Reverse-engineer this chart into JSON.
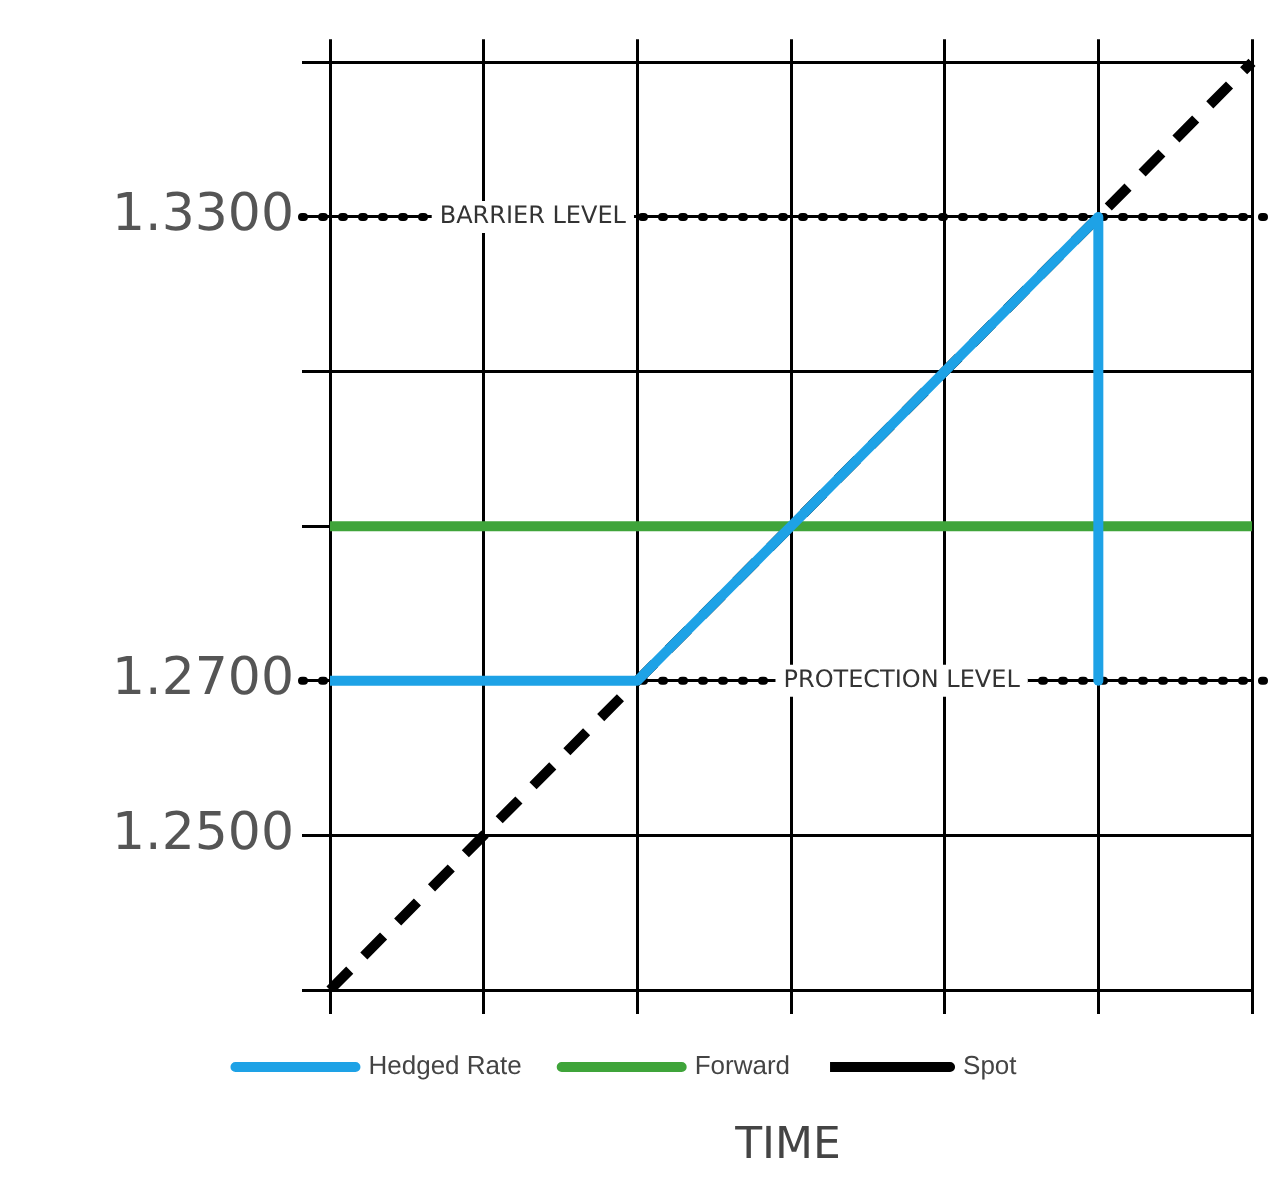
{
  "chart_data": {
    "type": "line",
    "xlabel": "TIME",
    "categories": [
      null,
      null,
      null,
      null,
      null,
      null,
      null
    ],
    "ylim": [
      1.23,
      1.353
    ],
    "yticks": [
      {
        "value": 1.23,
        "label": null
      },
      {
        "value": 1.25,
        "label": "1.2500"
      },
      {
        "value": 1.27,
        "label": "1.2700"
      },
      {
        "value": 1.29,
        "label": null
      },
      {
        "value": 1.31,
        "label": null
      },
      {
        "value": 1.33,
        "label": "1.3300"
      },
      {
        "value": 1.35,
        "label": null
      }
    ],
    "tick_labels": "y",
    "grid": true,
    "legend": "bottom",
    "marker": "none",
    "series": [
      {
        "name": "Hedged Rate",
        "color": "#1ea2e6",
        "values": [
          1.27,
          1.27,
          1.27,
          1.29,
          1.31,
          1.33,
          null
        ],
        "errors": [
          null,
          null,
          null,
          null,
          null,
          [
            1.27,
            1.33
          ],
          null
        ]
      },
      {
        "name": "Forward",
        "color": "#3fa43a",
        "values": [
          1.29,
          1.29,
          1.29,
          1.29,
          1.29,
          1.29,
          1.29
        ]
      },
      {
        "name": "Spot",
        "color": "#000000",
        "values": [
          1.23,
          1.25,
          1.27,
          1.29,
          1.31,
          1.33,
          1.35
        ],
        "line_style": "dashed"
      }
    ],
    "ref_lines": [
      {
        "axis": "y",
        "value": 1.33,
        "label": "BARRIER LEVEL",
        "color": "#000000",
        "line_style": "dotted"
      },
      {
        "axis": "y",
        "value": 1.27,
        "label": "PROTECTION LEVEL",
        "color": "#000000",
        "line_style": "dotted"
      }
    ]
  }
}
